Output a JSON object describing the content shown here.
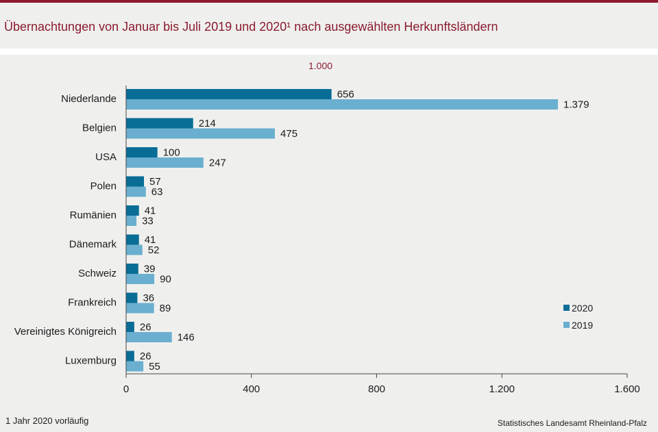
{
  "header": {
    "title": "Übernachtungen von Januar bis Juli 2019 und 2020¹ nach ausgewählten Herkunftsländern"
  },
  "chart_data": {
    "type": "bar",
    "orientation": "horizontal",
    "unit_label": "1.000",
    "categories": [
      "Niederlande",
      "Belgien",
      "USA",
      "Polen",
      "Rumänien",
      "Dänemark",
      "Schweiz",
      "Frankreich",
      "Vereinigtes Königreich",
      "Luxemburg"
    ],
    "series": [
      {
        "name": "2020",
        "color": "#0a6d96",
        "values": [
          656,
          214,
          100,
          57,
          41,
          41,
          39,
          36,
          26,
          26
        ],
        "labels": [
          "656",
          "214",
          "100",
          "57",
          "41",
          "41",
          "39",
          "36",
          "26",
          "26"
        ]
      },
      {
        "name": "2019",
        "color": "#6aafcf",
        "values": [
          1379,
          475,
          247,
          63,
          33,
          52,
          90,
          89,
          146,
          55
        ],
        "labels": [
          "1.379",
          "475",
          "247",
          "63",
          "33",
          "52",
          "90",
          "89",
          "146",
          "55"
        ]
      }
    ],
    "xlim": [
      0,
      1600
    ],
    "xticks": [
      0,
      400,
      800,
      1200,
      1600
    ],
    "xtick_labels": [
      "0",
      "400",
      "800",
      "1.200",
      "1.600"
    ],
    "legend_position": "right",
    "grid": false
  },
  "footer": {
    "footnote": "1 Jahr 2020 vorläufig",
    "source": "Statistisches Landesamt Rheinland-Pfalz"
  }
}
